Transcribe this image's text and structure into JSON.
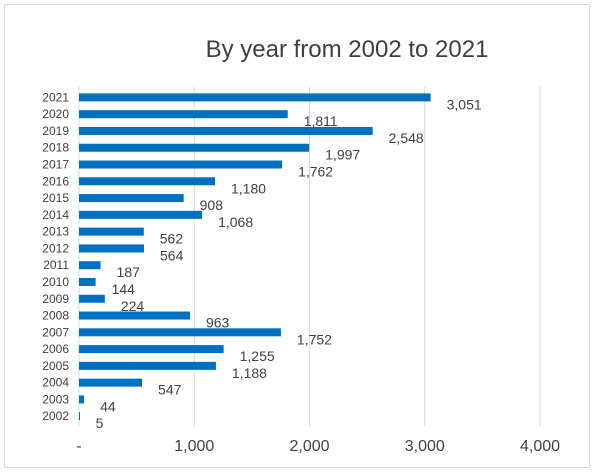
{
  "chart_data": {
    "type": "bar",
    "orientation": "horizontal",
    "title": "By year from 2002 to 2021",
    "xlabel": "",
    "ylabel": "",
    "categories": [
      "2021",
      "2020",
      "2019",
      "2018",
      "2017",
      "2016",
      "2015",
      "2014",
      "2013",
      "2012",
      "2011",
      "2010",
      "2009",
      "2008",
      "2007",
      "2006",
      "2005",
      "2004",
      "2003",
      "2002"
    ],
    "values": [
      3051,
      1811,
      2548,
      1997,
      1762,
      1180,
      908,
      1068,
      562,
      564,
      187,
      144,
      224,
      963,
      1752,
      1255,
      1188,
      547,
      44,
      5
    ],
    "value_labels": [
      "3,051",
      "1,811",
      "2,548",
      "1,997",
      "1,762",
      "1,180",
      "908",
      "1,068",
      "562",
      "564",
      "187",
      "144",
      "224",
      "963",
      "1,752",
      "1,255",
      "1,188",
      "547",
      "44",
      "5"
    ],
    "xlim": [
      0,
      4000
    ],
    "xticks": [
      0,
      1000,
      2000,
      3000,
      4000
    ],
    "xtick_labels": [
      "-",
      "1,000",
      "2,000",
      "3,000",
      "4,000"
    ],
    "grid": "vertical",
    "legend": "none",
    "bar_color": "#0070c0"
  }
}
